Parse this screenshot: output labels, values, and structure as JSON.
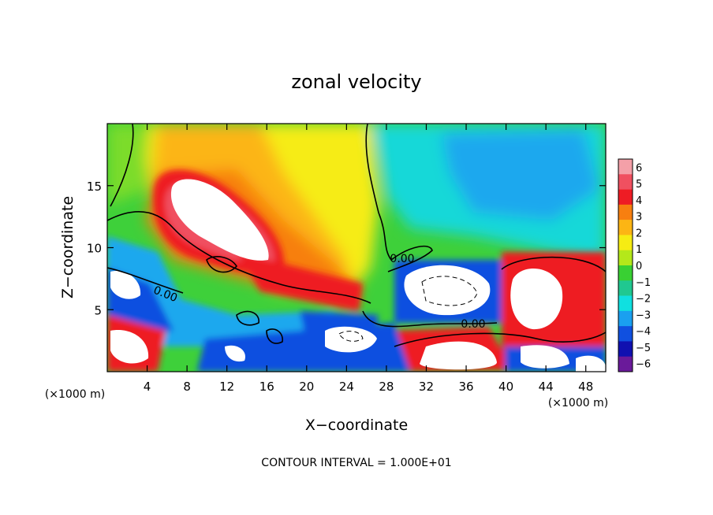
{
  "chart_data": {
    "type": "heatmap",
    "title": "zonal velocity",
    "xlabel": "X−coordinate",
    "ylabel": "Z−coordinate",
    "x_unit_label": "(×1000 m)",
    "x_unit_label_right": "(×1000 m)",
    "xlim": [
      0,
      50
    ],
    "ylim": [
      0,
      20
    ],
    "x_ticks": [
      4,
      8,
      12,
      16,
      20,
      24,
      28,
      32,
      36,
      40,
      44,
      48
    ],
    "y_ticks": [
      5,
      10,
      15
    ],
    "colorbar": {
      "ticks": [
        6,
        5,
        4,
        3,
        2,
        1,
        0,
        -1,
        -2,
        -3,
        -4,
        -5,
        -6
      ],
      "colors": [
        "#f4a0a8",
        "#f05060",
        "#ee1c24",
        "#f77f10",
        "#fcb514",
        "#f6ec13",
        "#b4e81a",
        "#39d033",
        "#20c890",
        "#10e0e0",
        "#1aa0f0",
        "#1050e0",
        "#1010b0",
        "#6a1a9a"
      ]
    },
    "contour_labels": [
      "0.00",
      "0.00",
      "0.00"
    ],
    "footnote": "CONTOUR INTERVAL = 1.000E+01",
    "grid": false,
    "legend": "colorbar-right"
  }
}
